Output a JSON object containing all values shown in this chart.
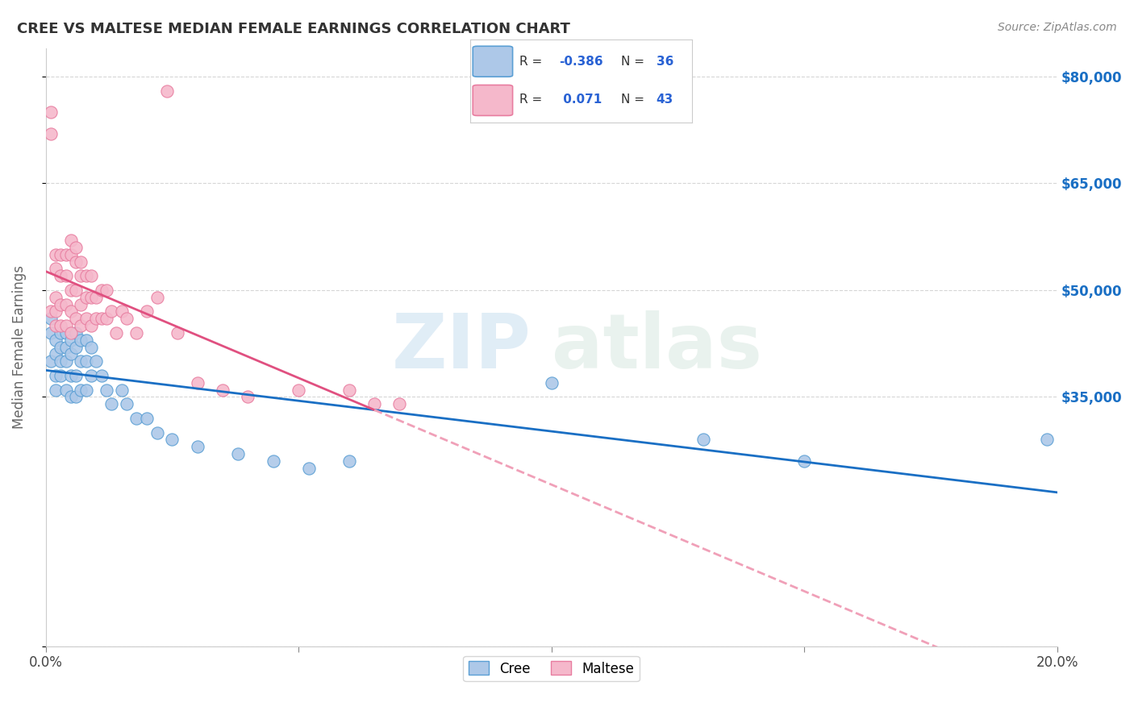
{
  "title": "CREE VS MALTESE MEDIAN FEMALE EARNINGS CORRELATION CHART",
  "source": "Source: ZipAtlas.com",
  "ylabel": "Median Female Earnings",
  "yticks": [
    0,
    35000,
    50000,
    65000,
    80000
  ],
  "ytick_labels": [
    "",
    "$35,000",
    "$50,000",
    "$65,000",
    "$80,000"
  ],
  "xmin": 0.0,
  "xmax": 0.2,
  "ymin": 0,
  "ymax": 84000,
  "cree_color": "#adc8e8",
  "cree_color_dark": "#5a9fd4",
  "maltese_color": "#f5b8cb",
  "maltese_color_dark": "#e87da0",
  "cree_line_color": "#1a6fc4",
  "maltese_line_color": "#e05080",
  "maltese_dash_color": "#f0a0b8",
  "legend_R_color": "#2962d4",
  "watermark_zip": "ZIP",
  "watermark_atlas": "atlas",
  "background_color": "#ffffff",
  "grid_color": "#cccccc",
  "cree_x": [
    0.001,
    0.001,
    0.001,
    0.002,
    0.002,
    0.002,
    0.002,
    0.003,
    0.003,
    0.003,
    0.003,
    0.004,
    0.004,
    0.004,
    0.004,
    0.005,
    0.005,
    0.005,
    0.005,
    0.006,
    0.006,
    0.006,
    0.006,
    0.007,
    0.007,
    0.007,
    0.008,
    0.008,
    0.008,
    0.009,
    0.009,
    0.01,
    0.011,
    0.012,
    0.013,
    0.015,
    0.016,
    0.018,
    0.02,
    0.022,
    0.025,
    0.03,
    0.038,
    0.045,
    0.052,
    0.06,
    0.1,
    0.13,
    0.15,
    0.198
  ],
  "cree_y": [
    46000,
    44000,
    40000,
    43000,
    41000,
    38000,
    36000,
    44000,
    42000,
    40000,
    38000,
    44000,
    42000,
    40000,
    36000,
    43000,
    41000,
    38000,
    35000,
    44000,
    42000,
    38000,
    35000,
    43000,
    40000,
    36000,
    43000,
    40000,
    36000,
    42000,
    38000,
    40000,
    38000,
    36000,
    34000,
    36000,
    34000,
    32000,
    32000,
    30000,
    29000,
    28000,
    27000,
    26000,
    25000,
    26000,
    37000,
    29000,
    26000,
    29000
  ],
  "maltese_x": [
    0.001,
    0.001,
    0.001,
    0.002,
    0.002,
    0.002,
    0.002,
    0.002,
    0.003,
    0.003,
    0.003,
    0.003,
    0.004,
    0.004,
    0.004,
    0.004,
    0.005,
    0.005,
    0.005,
    0.005,
    0.005,
    0.006,
    0.006,
    0.006,
    0.006,
    0.007,
    0.007,
    0.007,
    0.007,
    0.008,
    0.008,
    0.008,
    0.009,
    0.009,
    0.009,
    0.01,
    0.01,
    0.011,
    0.011,
    0.012,
    0.012,
    0.013,
    0.014,
    0.015,
    0.016,
    0.018,
    0.02,
    0.022,
    0.024,
    0.026,
    0.03,
    0.035,
    0.04,
    0.05,
    0.06,
    0.065,
    0.07
  ],
  "maltese_y": [
    75000,
    72000,
    47000,
    55000,
    53000,
    49000,
    47000,
    45000,
    55000,
    52000,
    48000,
    45000,
    55000,
    52000,
    48000,
    45000,
    57000,
    55000,
    50000,
    47000,
    44000,
    56000,
    54000,
    50000,
    46000,
    54000,
    52000,
    48000,
    45000,
    52000,
    49000,
    46000,
    52000,
    49000,
    45000,
    49000,
    46000,
    50000,
    46000,
    50000,
    46000,
    47000,
    44000,
    47000,
    46000,
    44000,
    47000,
    49000,
    78000,
    44000,
    37000,
    36000,
    35000,
    36000,
    36000,
    34000,
    34000
  ]
}
